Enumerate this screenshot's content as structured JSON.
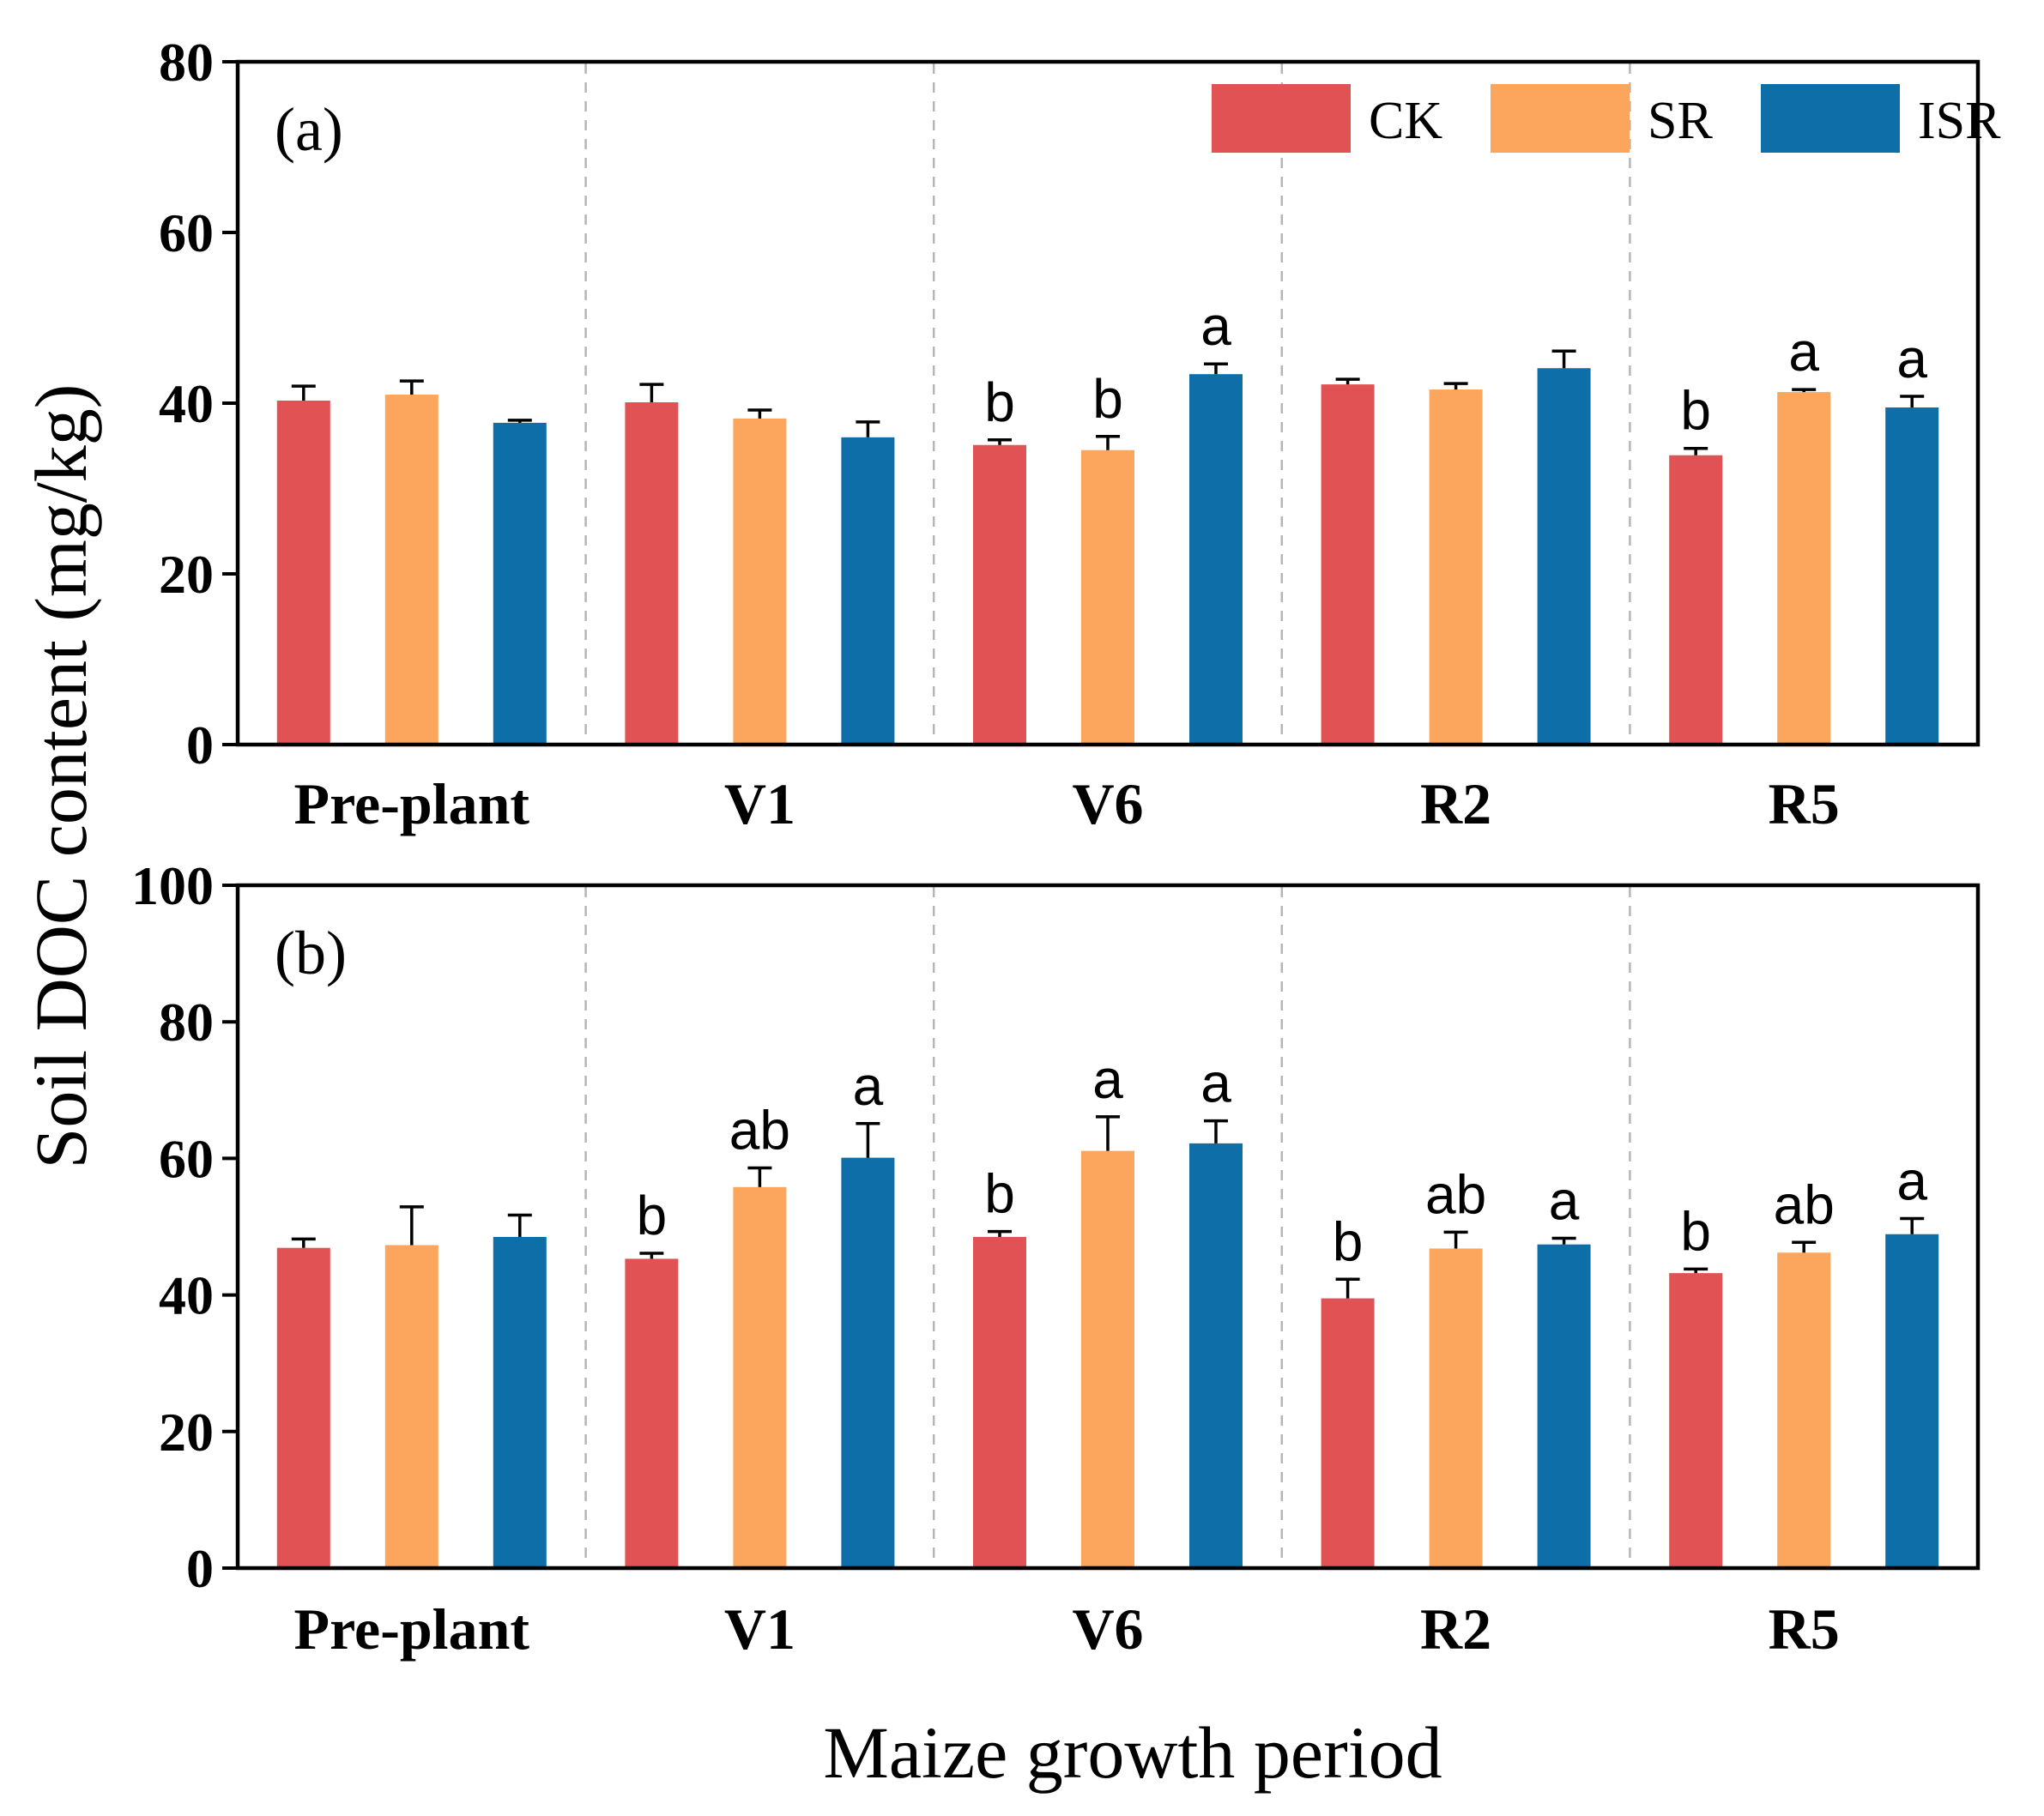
{
  "figure": {
    "ylabel": "Soil DOC content (mg/kg)",
    "xlabel": "Maize growth period"
  },
  "legend": [
    {
      "name": "CK",
      "color": "#e05254"
    },
    {
      "name": "SR",
      "color": "#fca55c"
    },
    {
      "name": "ISR",
      "color": "#0d6ea8"
    }
  ],
  "chart_data": [
    {
      "type": "bar",
      "panel_label": "(a)",
      "categories": [
        "Pre-plant",
        "V1",
        "V6",
        "R2",
        "R5"
      ],
      "ylim": [
        0,
        80
      ],
      "yticks": [
        0,
        20,
        40,
        60,
        80
      ],
      "legend_position": "top-right",
      "series": [
        {
          "name": "CK",
          "values": [
            40.3,
            40.1,
            35.1,
            42.2,
            33.9
          ],
          "errors": [
            1.7,
            2.1,
            0.6,
            0.6,
            0.8
          ],
          "sig": [
            "",
            "",
            "b",
            "",
            "b"
          ]
        },
        {
          "name": "SR",
          "values": [
            41.0,
            38.2,
            34.5,
            41.6,
            41.3
          ],
          "errors": [
            1.6,
            1.0,
            1.6,
            0.7,
            0.3
          ],
          "sig": [
            "",
            "",
            "b",
            "",
            "a"
          ]
        },
        {
          "name": "ISR",
          "values": [
            37.7,
            36.0,
            43.4,
            44.1,
            39.5
          ],
          "errors": [
            0.3,
            1.8,
            1.2,
            2.0,
            1.3
          ],
          "sig": [
            "",
            "",
            "a",
            "",
            "a"
          ]
        }
      ]
    },
    {
      "type": "bar",
      "panel_label": "(b)",
      "categories": [
        "Pre-plant",
        "V1",
        "V6",
        "R2",
        "R5"
      ],
      "ylim": [
        0,
        100
      ],
      "yticks": [
        0,
        20,
        40,
        60,
        80,
        100
      ],
      "series": [
        {
          "name": "CK",
          "values": [
            46.9,
            45.3,
            48.5,
            39.5,
            43.2
          ],
          "errors": [
            1.3,
            0.8,
            0.8,
            2.8,
            0.6
          ],
          "sig": [
            "",
            "b",
            "b",
            "b",
            "b"
          ]
        },
        {
          "name": "SR",
          "values": [
            47.3,
            55.8,
            61.1,
            46.8,
            46.2
          ],
          "errors": [
            5.6,
            2.8,
            5.0,
            2.4,
            1.5
          ],
          "sig": [
            "",
            "ab",
            "a",
            "ab",
            "ab"
          ]
        },
        {
          "name": "ISR",
          "values": [
            48.5,
            60.1,
            62.2,
            47.4,
            48.9
          ],
          "errors": [
            3.2,
            5.0,
            3.3,
            0.9,
            2.3
          ],
          "sig": [
            "",
            "a",
            "a",
            "a",
            "a"
          ]
        }
      ]
    }
  ]
}
